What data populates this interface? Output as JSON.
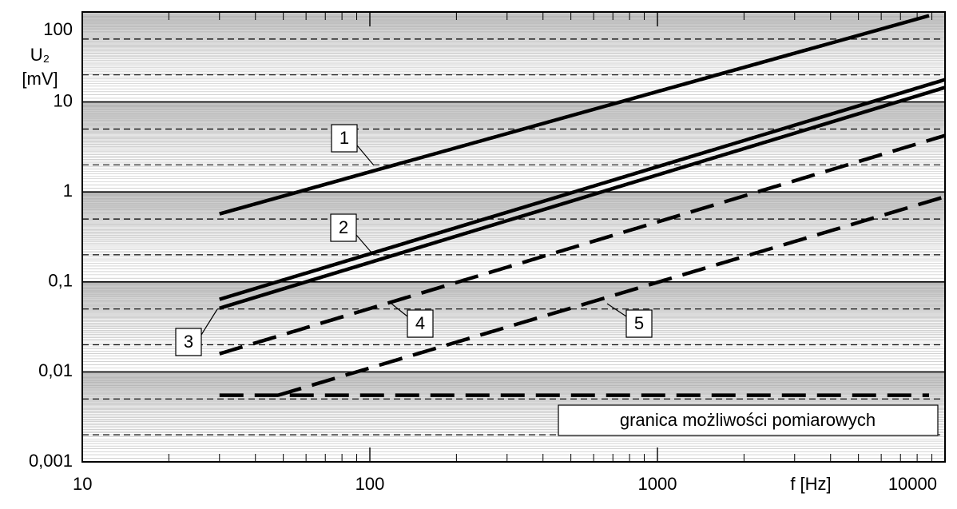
{
  "chart_data": {
    "type": "line",
    "xlabel": "f [Hz]",
    "ylabel_lines": [
      "U₂",
      "[mV]"
    ],
    "xlog": true,
    "ylog": true,
    "xlim": [
      10,
      10000
    ],
    "ylim": [
      0.001,
      100
    ],
    "xticks": [
      10,
      100,
      1000,
      10000
    ],
    "yticks": [
      {
        "value": 0.001,
        "label": "0,001"
      },
      {
        "value": 0.01,
        "label": "0,01"
      },
      {
        "value": 0.1,
        "label": "0,1"
      },
      1,
      10,
      100
    ],
    "xminor_ticks": [
      20,
      30,
      40,
      50,
      60,
      70,
      80,
      90,
      200,
      300,
      400,
      500,
      600,
      700,
      800,
      900,
      2000,
      3000,
      4000,
      5000,
      6000,
      7000,
      8000,
      9000
    ],
    "ygrid_dashed": [
      0.002,
      0.005,
      0.02,
      0.05,
      0.2,
      0.5,
      2,
      5,
      20,
      50
    ],
    "series": [
      {
        "name": "1",
        "color": "#000000",
        "dash": false,
        "x": [
          30,
          8800
        ],
        "values": [
          0.57,
          91
        ]
      },
      {
        "name": "2",
        "color": "#000000",
        "dash": false,
        "x": [
          30,
          10000
        ],
        "values": [
          0.064,
          17.7
        ]
      },
      {
        "name": "3",
        "color": "#000000",
        "dash": false,
        "x": [
          30,
          10000
        ],
        "values": [
          0.051,
          14.5
        ]
      },
      {
        "name": "4",
        "color": "#000000",
        "dash": true,
        "x": [
          30,
          10000
        ],
        "values": [
          0.0159,
          4.24
        ]
      },
      {
        "name": "5",
        "color": "#000000",
        "dash": true,
        "x": [
          48,
          10000
        ],
        "values": [
          0.0055,
          0.885
        ]
      },
      {
        "name": "granica możliwości pomiarowych",
        "color": "#000000",
        "dash": true,
        "x": [
          30,
          8800
        ],
        "values": [
          0.0055,
          0.0055
        ]
      }
    ]
  }
}
